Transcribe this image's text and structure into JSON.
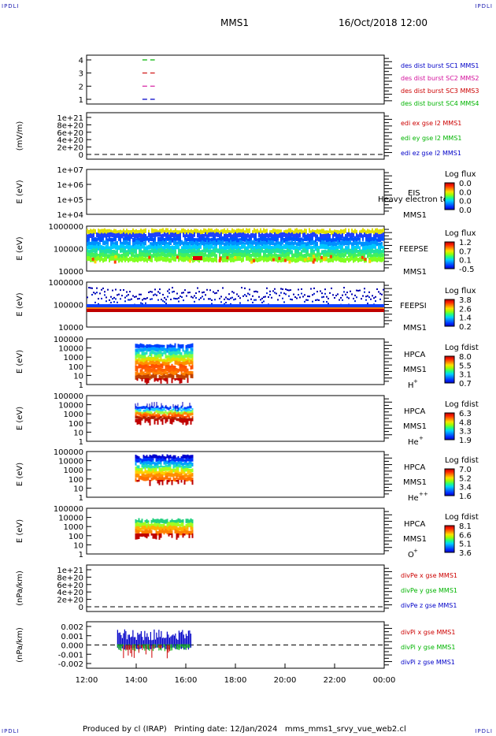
{
  "corner_labels": [
    "IPDLI",
    "IPDLI",
    "IPDLI",
    "IPDLI"
  ],
  "header": {
    "spacecraft": "MMS1",
    "datetime": "16/Oct/2018 12:00"
  },
  "footer": {
    "text": "Produced by cl (IRAP)   Printing date: 12/Jan/2024   mms_mms1_srvy_vue_web2.cl"
  },
  "colors": {
    "red": "#cc0000",
    "green": "#00b400",
    "blue": "#0000c8",
    "magenta": "#d4109c",
    "dash": "#000000"
  },
  "chart_data": [
    {
      "type": "line",
      "panel": 1,
      "y_ticks": [
        "4",
        "3",
        "2",
        "1"
      ],
      "legend": [
        {
          "text": "des dist burst SC1 MMS1",
          "color": "#0000c8"
        },
        {
          "text": "des dist burst SC2 MMS2",
          "color": "#d4109c"
        },
        {
          "text": "des dist burst SC3 MMS3",
          "color": "#cc0000"
        },
        {
          "text": "des dist burst SC4 MMS4",
          "color": "#00b400"
        }
      ],
      "series": [
        {
          "level": 4,
          "x": [
            "14:15",
            "14:45"
          ],
          "color": "#00b400"
        },
        {
          "level": 3,
          "x": [
            "14:15",
            "14:45"
          ],
          "color": "#cc0000"
        },
        {
          "level": 2,
          "x": [
            "14:15",
            "14:45"
          ],
          "color": "#d4109c"
        },
        {
          "level": 1,
          "x": [
            "14:15",
            "14:45"
          ],
          "color": "#0000c8"
        }
      ]
    },
    {
      "type": "line",
      "panel": 2,
      "ylabel": "(mV/m)",
      "y_ticks": [
        "1e+21",
        "8e+20",
        "6e+20",
        "4e+20",
        "2e+20",
        "0"
      ],
      "legend": [
        {
          "text": "edi ex gse l2 MMS1",
          "color": "#cc0000"
        },
        {
          "text": "edi ey gse l2 MMS1",
          "color": "#00b400"
        },
        {
          "text": "edi ez gse l2 MMS1",
          "color": "#0000c8"
        }
      ]
    },
    {
      "type": "heatmap",
      "panel": 3,
      "ylabel": "E (eV)",
      "y_ticks": [
        "1e+07",
        "1e+06",
        "1e+05",
        "1e+04"
      ],
      "label_lines": [
        "EIS",
        "MMS1"
      ],
      "overlay": "Heavy electron to",
      "colorbar": {
        "title": "Log flux",
        "ticks": [
          "0.0",
          "0.0",
          "0.0",
          "0.0"
        ]
      }
    },
    {
      "type": "heatmap",
      "panel": 4,
      "ylabel": "E (eV)",
      "y_ticks": [
        "1000000",
        "100000",
        "10000"
      ],
      "label_lines": [
        "FEEPSE",
        "MMS1"
      ],
      "x_range": [
        "12:00",
        "00:00"
      ],
      "colorbar": {
        "title": "Log flux",
        "ticks": [
          "1.2",
          "0.7",
          "0.1",
          "-0.5"
        ]
      }
    },
    {
      "type": "heatmap",
      "panel": 5,
      "ylabel": "E (eV)",
      "y_ticks": [
        "1000000",
        "100000",
        "10000"
      ],
      "label_lines": [
        "FEEPSI",
        "MMS1"
      ],
      "x_range": [
        "12:00",
        "00:00"
      ],
      "colorbar": {
        "title": "Log flux",
        "ticks": [
          "3.8",
          "2.6",
          "1.4",
          "0.2"
        ]
      }
    },
    {
      "type": "heatmap",
      "panel": 6,
      "ylabel": "E (eV)",
      "y_ticks": [
        "100000",
        "10000",
        "1000",
        "100",
        "10",
        "1"
      ],
      "label_lines": [
        "HPCA",
        "MMS1"
      ],
      "species": "H",
      "charge": "+",
      "x_range": [
        "13:00",
        "16:15"
      ],
      "colorbar": {
        "title": "Log fdist",
        "ticks": [
          "8.0",
          "5.5",
          "3.1",
          "0.7"
        ]
      }
    },
    {
      "type": "heatmap",
      "panel": 7,
      "ylabel": "E (eV)",
      "y_ticks": [
        "100000",
        "10000",
        "1000",
        "100",
        "10",
        "1"
      ],
      "label_lines": [
        "HPCA",
        "MMS1"
      ],
      "species": "He",
      "charge": "+",
      "x_range": [
        "13:00",
        "16:15"
      ],
      "colorbar": {
        "title": "Log fdist",
        "ticks": [
          "6.3",
          "4.8",
          "3.3",
          "1.9"
        ]
      }
    },
    {
      "type": "heatmap",
      "panel": 8,
      "ylabel": "E (eV)",
      "y_ticks": [
        "100000",
        "10000",
        "1000",
        "100",
        "10",
        "1"
      ],
      "label_lines": [
        "HPCA",
        "MMS1"
      ],
      "species": "He",
      "charge": "++",
      "x_range": [
        "13:00",
        "16:15"
      ],
      "colorbar": {
        "title": "Log fdist",
        "ticks": [
          "7.0",
          "5.2",
          "3.4",
          "1.6"
        ]
      }
    },
    {
      "type": "heatmap",
      "panel": 9,
      "ylabel": "E (eV)",
      "y_ticks": [
        "100000",
        "10000",
        "1000",
        "100",
        "10",
        "1"
      ],
      "label_lines": [
        "HPCA",
        "MMS1"
      ],
      "species": "O",
      "charge": "+",
      "x_range": [
        "13:00",
        "16:15"
      ],
      "colorbar": {
        "title": "Log fdist",
        "ticks": [
          "8.1",
          "6.6",
          "5.1",
          "3.6"
        ]
      }
    },
    {
      "type": "line",
      "panel": 10,
      "ylabel": "(nPa/km)",
      "y_ticks": [
        "1e+21",
        "8e+20",
        "6e+20",
        "4e+20",
        "2e+20",
        "0"
      ],
      "legend": [
        {
          "text": "divPe x gse MMS1",
          "color": "#cc0000"
        },
        {
          "text": "divPe y gse MMS1",
          "color": "#00b400"
        },
        {
          "text": "divPe z gse MMS1",
          "color": "#0000c8"
        }
      ]
    },
    {
      "type": "line",
      "panel": 11,
      "ylabel": "(nPa/km)",
      "y_ticks": [
        "0.002",
        "0.001",
        "0.000",
        "-0.001",
        "-0.002"
      ],
      "legend": [
        {
          "text": "divPi x gse MMS1",
          "color": "#cc0000"
        },
        {
          "text": "divPi y gse MMS1",
          "color": "#00b400"
        },
        {
          "text": "divPi z gse MMS1",
          "color": "#0000c8"
        }
      ],
      "x_range": [
        "13:15",
        "16:15"
      ]
    }
  ],
  "x_axis": {
    "ticks": [
      "12:00",
      "14:00",
      "16:00",
      "18:00",
      "20:00",
      "22:00",
      "00:00"
    ]
  }
}
